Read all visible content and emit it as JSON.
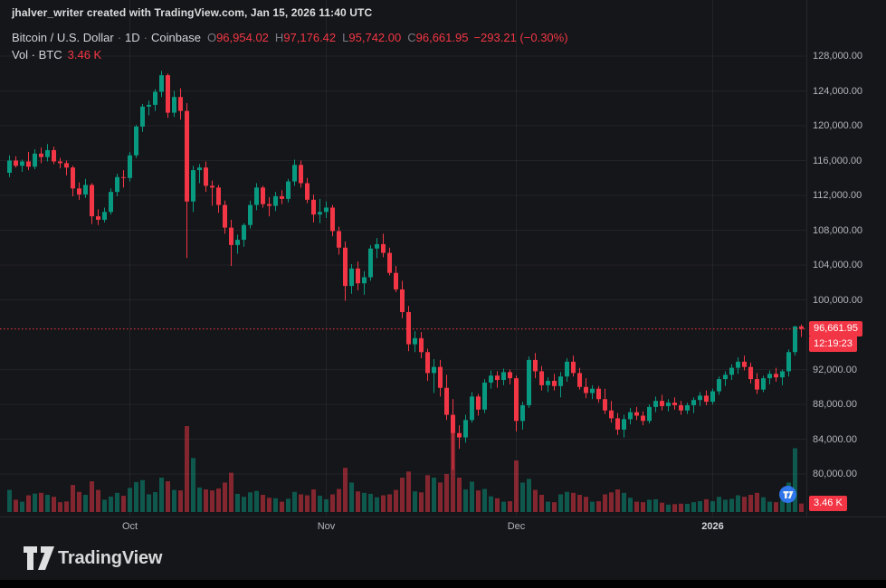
{
  "header": {
    "attribution": "jhalver_writer created with TradingView.com, Jan 15, 2026 11:40 UTC"
  },
  "legend": {
    "symbol": "Bitcoin / U.S. Dollar",
    "sep": "·",
    "interval": "1D",
    "exchange": "Coinbase",
    "ohlc": {
      "o_label": "O",
      "o": "96,954.02",
      "h_label": "H",
      "h": "97,176.42",
      "l_label": "L",
      "l": "95,742.00",
      "c_label": "C",
      "c": "96,661.95",
      "change": "−293.21 (−0.30%)"
    },
    "vol_label": "Vol · BTC",
    "vol_value": "3.46 K"
  },
  "price_axis": {
    "ticks": [
      {
        "value": 128000,
        "label": "128,000.00"
      },
      {
        "value": 124000,
        "label": "124,000.00"
      },
      {
        "value": 120000,
        "label": "120,000.00"
      },
      {
        "value": 116000,
        "label": "116,000.00"
      },
      {
        "value": 112000,
        "label": "112,000.00"
      },
      {
        "value": 108000,
        "label": "108,000.00"
      },
      {
        "value": 104000,
        "label": "104,000.00"
      },
      {
        "value": 100000,
        "label": "100,000.00"
      },
      {
        "value": 92000,
        "label": "92,000.00"
      },
      {
        "value": 88000,
        "label": "88,000.00"
      },
      {
        "value": 84000,
        "label": "84,000.00"
      },
      {
        "value": 80000,
        "label": "80,000.00"
      }
    ],
    "last_price_label": "96,661.95",
    "countdown": "12:19:23",
    "volume_label": "3.46 K"
  },
  "time_axis": {
    "labels": [
      {
        "text": "Oct",
        "index": 19,
        "bold": false
      },
      {
        "text": "Nov",
        "index": 50,
        "bold": false
      },
      {
        "text": "Dec",
        "index": 80,
        "bold": false
      },
      {
        "text": "2026",
        "index": 111,
        "bold": true
      }
    ]
  },
  "footer": {
    "brand": "TradingView"
  },
  "colors": {
    "bg": "#151619",
    "up": "#089981",
    "down": "#f23645",
    "vol_up": "rgba(8,153,129,0.5)",
    "vol_down": "rgba(242,54,69,0.5)",
    "grid": "rgba(255,255,255,0.06)",
    "text": "#d1d4dc",
    "muted": "#b2b5be",
    "badge_red": "#f23645",
    "stamp_blue": "#3179f5"
  },
  "chart_data": {
    "type": "candlestick+volume",
    "title": "Bitcoin / U.S. Dollar, 1D, Coinbase",
    "x_range": "2025-09-12 to 2026-01-15, one candle per day",
    "ylim": [
      80000,
      128000
    ],
    "grid": true,
    "volume_unit": "BTC",
    "last": {
      "o": 96954.02,
      "h": 97176.42,
      "l": 95742.0,
      "c": 96661.95,
      "change": -293.21,
      "change_pct": -0.3,
      "volume": 3460,
      "countdown": "12:19:23"
    },
    "candles_format": [
      "open",
      "high",
      "low",
      "close",
      "volume_btc"
    ],
    "candles": [
      [
        114600,
        116600,
        114100,
        116000,
        9000
      ],
      [
        116000,
        116500,
        115200,
        115400,
        5000
      ],
      [
        115400,
        116100,
        114700,
        115900,
        4200
      ],
      [
        115900,
        117000,
        114900,
        115300,
        6800
      ],
      [
        115300,
        117300,
        115000,
        116800,
        7500
      ],
      [
        116800,
        117500,
        115700,
        116400,
        7800
      ],
      [
        116400,
        117900,
        115900,
        117200,
        7000
      ],
      [
        117200,
        117600,
        115600,
        115900,
        6200
      ],
      [
        115900,
        116300,
        115100,
        115700,
        4000
      ],
      [
        115700,
        116000,
        114300,
        115200,
        4300
      ],
      [
        115200,
        115400,
        111900,
        112800,
        11000
      ],
      [
        112800,
        113500,
        111500,
        112100,
        8200
      ],
      [
        112100,
        113900,
        111700,
        113200,
        7000
      ],
      [
        113200,
        113400,
        108700,
        109600,
        12500
      ],
      [
        109600,
        110400,
        108600,
        109200,
        9000
      ],
      [
        109200,
        110600,
        108900,
        110100,
        5000
      ],
      [
        110100,
        112800,
        109800,
        112400,
        6300
      ],
      [
        112400,
        114500,
        111900,
        114100,
        7800
      ],
      [
        114100,
        114900,
        112900,
        114000,
        6600
      ],
      [
        114000,
        117000,
        113600,
        116600,
        9800
      ],
      [
        116600,
        120100,
        116300,
        119900,
        12200
      ],
      [
        119900,
        122500,
        119300,
        122200,
        13000
      ],
      [
        122200,
        122900,
        121200,
        122400,
        7200
      ],
      [
        122400,
        124200,
        121700,
        123900,
        8100
      ],
      [
        123900,
        126300,
        123300,
        125800,
        14000
      ],
      [
        125800,
        126000,
        120900,
        121500,
        12500
      ],
      [
        121500,
        124000,
        121000,
        123300,
        9000
      ],
      [
        123300,
        124300,
        120700,
        121700,
        8800
      ],
      [
        121700,
        122600,
        104800,
        111300,
        35000
      ],
      [
        111300,
        115400,
        110100,
        114900,
        22000
      ],
      [
        114900,
        115600,
        113400,
        115200,
        10000
      ],
      [
        115200,
        115900,
        112400,
        113100,
        9200
      ],
      [
        113100,
        113700,
        110800,
        112900,
        8800
      ],
      [
        112900,
        113200,
        110000,
        110900,
        9600
      ],
      [
        110900,
        111400,
        107600,
        108300,
        12000
      ],
      [
        108300,
        109200,
        103900,
        106300,
        16000
      ],
      [
        106300,
        107500,
        105300,
        106900,
        7400
      ],
      [
        106900,
        108800,
        106100,
        108600,
        6200
      ],
      [
        108600,
        111400,
        108200,
        110900,
        8000
      ],
      [
        110900,
        113400,
        110300,
        112900,
        8600
      ],
      [
        112900,
        113100,
        110600,
        111000,
        7000
      ],
      [
        111000,
        111800,
        109600,
        110800,
        5800
      ],
      [
        110800,
        112400,
        110200,
        111900,
        5600
      ],
      [
        111900,
        112600,
        111000,
        111600,
        4200
      ],
      [
        111600,
        113900,
        111200,
        113600,
        5400
      ],
      [
        113600,
        116100,
        113100,
        115500,
        8200
      ],
      [
        115500,
        116000,
        112900,
        113400,
        7200
      ],
      [
        113400,
        114000,
        111100,
        111500,
        6800
      ],
      [
        111500,
        112100,
        108900,
        109800,
        9200
      ],
      [
        109800,
        111600,
        108800,
        110100,
        6600
      ],
      [
        110100,
        111300,
        109400,
        110600,
        5200
      ],
      [
        110600,
        110900,
        107300,
        107900,
        7200
      ],
      [
        107900,
        108400,
        105200,
        106000,
        9400
      ],
      [
        106000,
        106700,
        99900,
        101600,
        18000
      ],
      [
        101600,
        104100,
        100700,
        103600,
        12000
      ],
      [
        103600,
        104400,
        101100,
        101900,
        8400
      ],
      [
        101900,
        103300,
        100600,
        102600,
        7800
      ],
      [
        102600,
        106300,
        102200,
        105900,
        7400
      ],
      [
        105900,
        107100,
        104800,
        106400,
        6000
      ],
      [
        106400,
        107600,
        104900,
        105400,
        6800
      ],
      [
        105400,
        106000,
        102800,
        103100,
        7200
      ],
      [
        103100,
        103900,
        100900,
        101200,
        9000
      ],
      [
        101200,
        102200,
        97900,
        98600,
        14000
      ],
      [
        98600,
        99300,
        94100,
        94900,
        16500
      ],
      [
        94900,
        96400,
        94000,
        95600,
        8400
      ],
      [
        95600,
        96300,
        93300,
        94000,
        8000
      ],
      [
        94000,
        94400,
        90700,
        91600,
        15000
      ],
      [
        91600,
        93200,
        89300,
        92300,
        14000
      ],
      [
        92300,
        93100,
        88900,
        89900,
        12000
      ],
      [
        89900,
        91400,
        86200,
        86800,
        15500
      ],
      [
        86800,
        88600,
        80500,
        84700,
        34000
      ],
      [
        84700,
        85600,
        82900,
        84200,
        14000
      ],
      [
        84200,
        86800,
        83600,
        86200,
        9200
      ],
      [
        86200,
        89400,
        85900,
        88900,
        12400
      ],
      [
        88900,
        89200,
        86700,
        87400,
        8800
      ],
      [
        87400,
        90900,
        87000,
        90500,
        9400
      ],
      [
        90500,
        91900,
        89800,
        91300,
        6400
      ],
      [
        91300,
        91800,
        89900,
        90800,
        5600
      ],
      [
        90800,
        92100,
        90200,
        91700,
        4200
      ],
      [
        91700,
        92000,
        90300,
        91000,
        4400
      ],
      [
        91000,
        91300,
        84900,
        86100,
        21000
      ],
      [
        86100,
        88300,
        85100,
        87900,
        12000
      ],
      [
        87900,
        93500,
        87600,
        93100,
        13500
      ],
      [
        93100,
        93900,
        91000,
        91800,
        9000
      ],
      [
        91800,
        92400,
        89600,
        90200,
        7000
      ],
      [
        90200,
        91100,
        89400,
        90700,
        4200
      ],
      [
        90700,
        91500,
        89600,
        90100,
        4000
      ],
      [
        90100,
        91700,
        88800,
        91200,
        7200
      ],
      [
        91200,
        93300,
        90600,
        92900,
        8200
      ],
      [
        92900,
        93600,
        91200,
        91600,
        7800
      ],
      [
        91600,
        92200,
        89700,
        90000,
        7000
      ],
      [
        90000,
        91000,
        88700,
        89300,
        6200
      ],
      [
        89300,
        90200,
        88600,
        89800,
        4200
      ],
      [
        89800,
        90100,
        88200,
        88600,
        4400
      ],
      [
        88600,
        89800,
        86900,
        87300,
        7200
      ],
      [
        87300,
        88400,
        85900,
        86400,
        8000
      ],
      [
        86400,
        87000,
        84500,
        85100,
        9200
      ],
      [
        85100,
        86800,
        84200,
        86300,
        7800
      ],
      [
        86300,
        87600,
        85700,
        87100,
        5800
      ],
      [
        87100,
        87700,
        86200,
        86700,
        4200
      ],
      [
        86700,
        87200,
        85600,
        86100,
        4000
      ],
      [
        86100,
        88000,
        85800,
        87700,
        5000
      ],
      [
        87700,
        88900,
        87100,
        88400,
        5200
      ],
      [
        88400,
        89100,
        87300,
        87800,
        3800
      ],
      [
        87800,
        88600,
        87200,
        88200,
        3000
      ],
      [
        88200,
        88800,
        87400,
        87900,
        3200
      ],
      [
        87900,
        88400,
        86800,
        87300,
        3400
      ],
      [
        87300,
        88200,
        86900,
        87900,
        3300
      ],
      [
        87900,
        88800,
        87000,
        88500,
        4000
      ],
      [
        88500,
        89400,
        87800,
        89000,
        4400
      ],
      [
        89000,
        89600,
        87900,
        88300,
        5200
      ],
      [
        88300,
        89800,
        88000,
        89500,
        4400
      ],
      [
        89500,
        91200,
        89100,
        90900,
        6200
      ],
      [
        90900,
        91800,
        90100,
        91400,
        5000
      ],
      [
        91400,
        92600,
        90800,
        92200,
        5400
      ],
      [
        92200,
        93400,
        91500,
        92900,
        6800
      ],
      [
        92900,
        93600,
        91900,
        92300,
        6200
      ],
      [
        92300,
        92800,
        90400,
        90900,
        7000
      ],
      [
        90900,
        91600,
        89200,
        89700,
        7800
      ],
      [
        89700,
        91300,
        89400,
        91000,
        6000
      ],
      [
        91000,
        91900,
        90300,
        91500,
        4200
      ],
      [
        91500,
        92200,
        90600,
        91100,
        4000
      ],
      [
        91100,
        92000,
        90200,
        91800,
        4800
      ],
      [
        91800,
        94300,
        91200,
        94000,
        12000
      ],
      [
        94000,
        97000,
        93600,
        96950,
        26000
      ],
      [
        96954.02,
        97176.42,
        95742,
        96661.95,
        3460
      ]
    ]
  }
}
